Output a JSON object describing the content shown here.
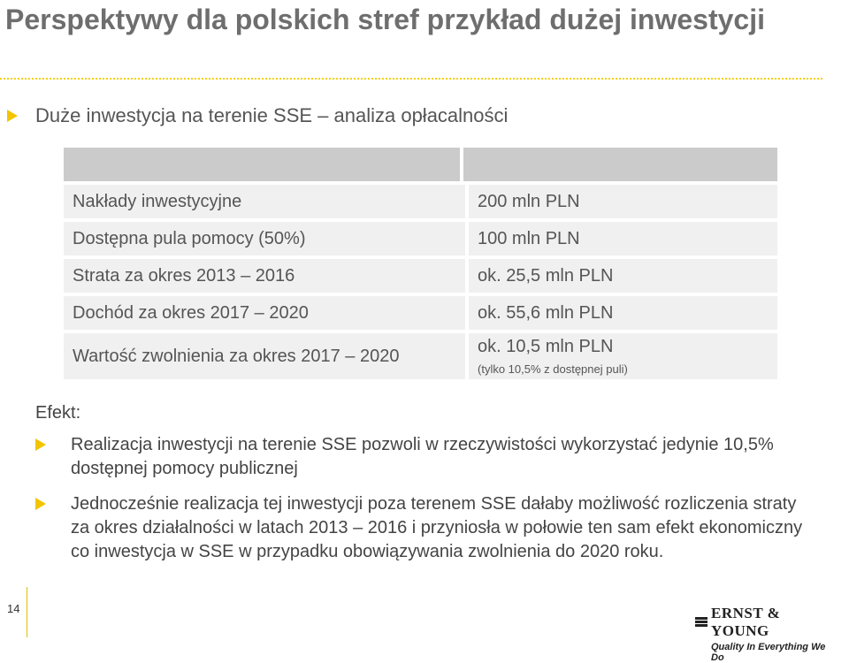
{
  "title": "Perspektywy dla polskich stref   przykład dużej inwestycji",
  "subtitle": "Duże inwestycja na terenie SSE – analiza opłacalności",
  "table": {
    "rows": [
      {
        "label": "Nakłady inwestycyjne",
        "value": "200 mln PLN"
      },
      {
        "label": "Dostępna pula pomocy (50%)",
        "value": "100 mln PLN"
      },
      {
        "label": "Strata za okres 2013 – 2016",
        "value": "ok. 25,5 mln PLN"
      },
      {
        "label": "Dochód za okres 2017 – 2020",
        "value": "ok. 55,6 mln PLN"
      },
      {
        "label": "Wartość zwolnienia za okres 2017 – 2020",
        "value": "ok. 10,5 mln PLN",
        "note": "(tylko 10,5% z dostępnej puli)"
      }
    ]
  },
  "efekt_label": "Efekt:",
  "bullets": [
    "Realizacja inwestycji na terenie SSE pozwoli w rzeczywistości wykorzystać jedynie 10,5% dostępnej pomocy publicznej",
    "Jednocześnie realizacja tej inwestycji poza terenem SSE dałaby możliwość rozliczenia straty za okres działalności w latach 2013 – 2016 i przyniosła w połowie ten sam efekt ekonomiczny co inwestycja w SSE w przypadku obowiązywania zwolnienia do 2020 roku."
  ],
  "page_number": "14",
  "logo": {
    "name": "ERNST & YOUNG",
    "tagline": "Quality In Everything We Do"
  },
  "colors": {
    "accent": "#f2c500",
    "header_cell": "#cbcbcb",
    "cell": "#f0f0f0"
  }
}
